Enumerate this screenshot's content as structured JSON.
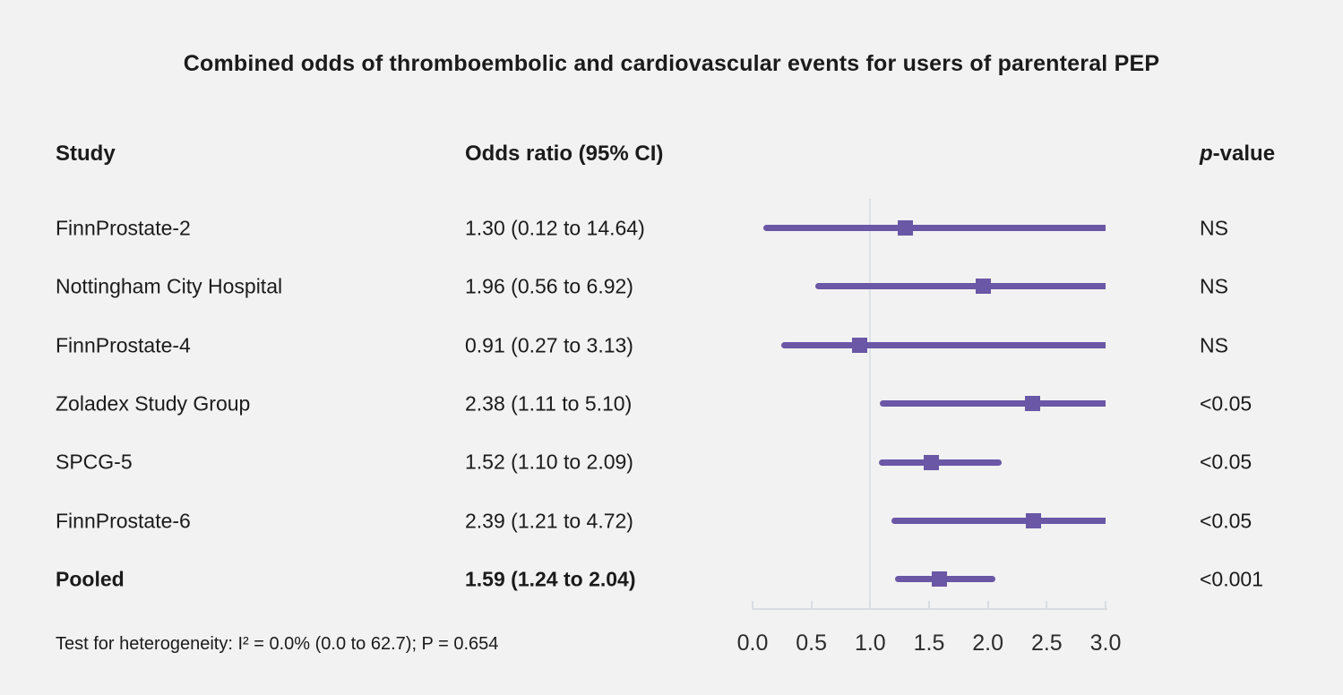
{
  "chart_data": {
    "type": "forest",
    "title": "Combined odds of thromboembolic and cardiovascular events for users of parenteral PEP",
    "columns": {
      "study": "Study",
      "or_ci": "Odds ratio (95% CI)",
      "p_italic": "p",
      "p_rest": "-value"
    },
    "rows": [
      {
        "study": "FinnProstate-2",
        "or_text": "1.30 (0.12 to 14.64)",
        "or": 1.3,
        "lo": 0.12,
        "hi": 14.64,
        "p": "NS",
        "bold": false
      },
      {
        "study": "Nottingham City Hospital",
        "or_text": "1.96 (0.56 to 6.92)",
        "or": 1.96,
        "lo": 0.56,
        "hi": 6.92,
        "p": "NS",
        "bold": false
      },
      {
        "study": "FinnProstate-4",
        "or_text": "0.91 (0.27 to 3.13)",
        "or": 0.91,
        "lo": 0.27,
        "hi": 3.13,
        "p": "NS",
        "bold": false
      },
      {
        "study": "Zoladex Study Group",
        "or_text": "2.38 (1.11 to 5.10)",
        "or": 2.38,
        "lo": 1.11,
        "hi": 5.1,
        "p": "<0.05",
        "bold": false
      },
      {
        "study": "SPCG-5",
        "or_text": "1.52 (1.10 to 2.09)",
        "or": 1.52,
        "lo": 1.1,
        "hi": 2.09,
        "p": "<0.05",
        "bold": false
      },
      {
        "study": "FinnProstate-6",
        "or_text": "2.39 (1.21 to 4.72)",
        "or": 2.39,
        "lo": 1.21,
        "hi": 4.72,
        "p": "<0.05",
        "bold": false
      },
      {
        "study": "Pooled",
        "or_text": "1.59 (1.24 to 2.04)",
        "or": 1.59,
        "lo": 1.24,
        "hi": 2.04,
        "p": "<0.001",
        "bold": true
      }
    ],
    "axis": {
      "min": 0,
      "max": 3,
      "tick_labels": [
        "0.0",
        "0.5",
        "1.0",
        "1.5",
        "2.0",
        "2.5",
        "3.0"
      ],
      "tick_values": [
        0,
        0.5,
        1,
        1.5,
        2,
        2.5,
        3
      ],
      "reference_value": 1.0,
      "clip_max": 3.0,
      "grid": false
    },
    "footnote": "Test for heterogeneity: I² = 0.0% (0.0 to 62.7); P = 0.654",
    "colors": {
      "marker": "#6a57a6",
      "ci_line": "#6a57a6",
      "reference_line": "#dde1e6",
      "axis_line": "#d9dce0",
      "background": "#f2f2f2",
      "text": "#1b1b1b"
    }
  }
}
